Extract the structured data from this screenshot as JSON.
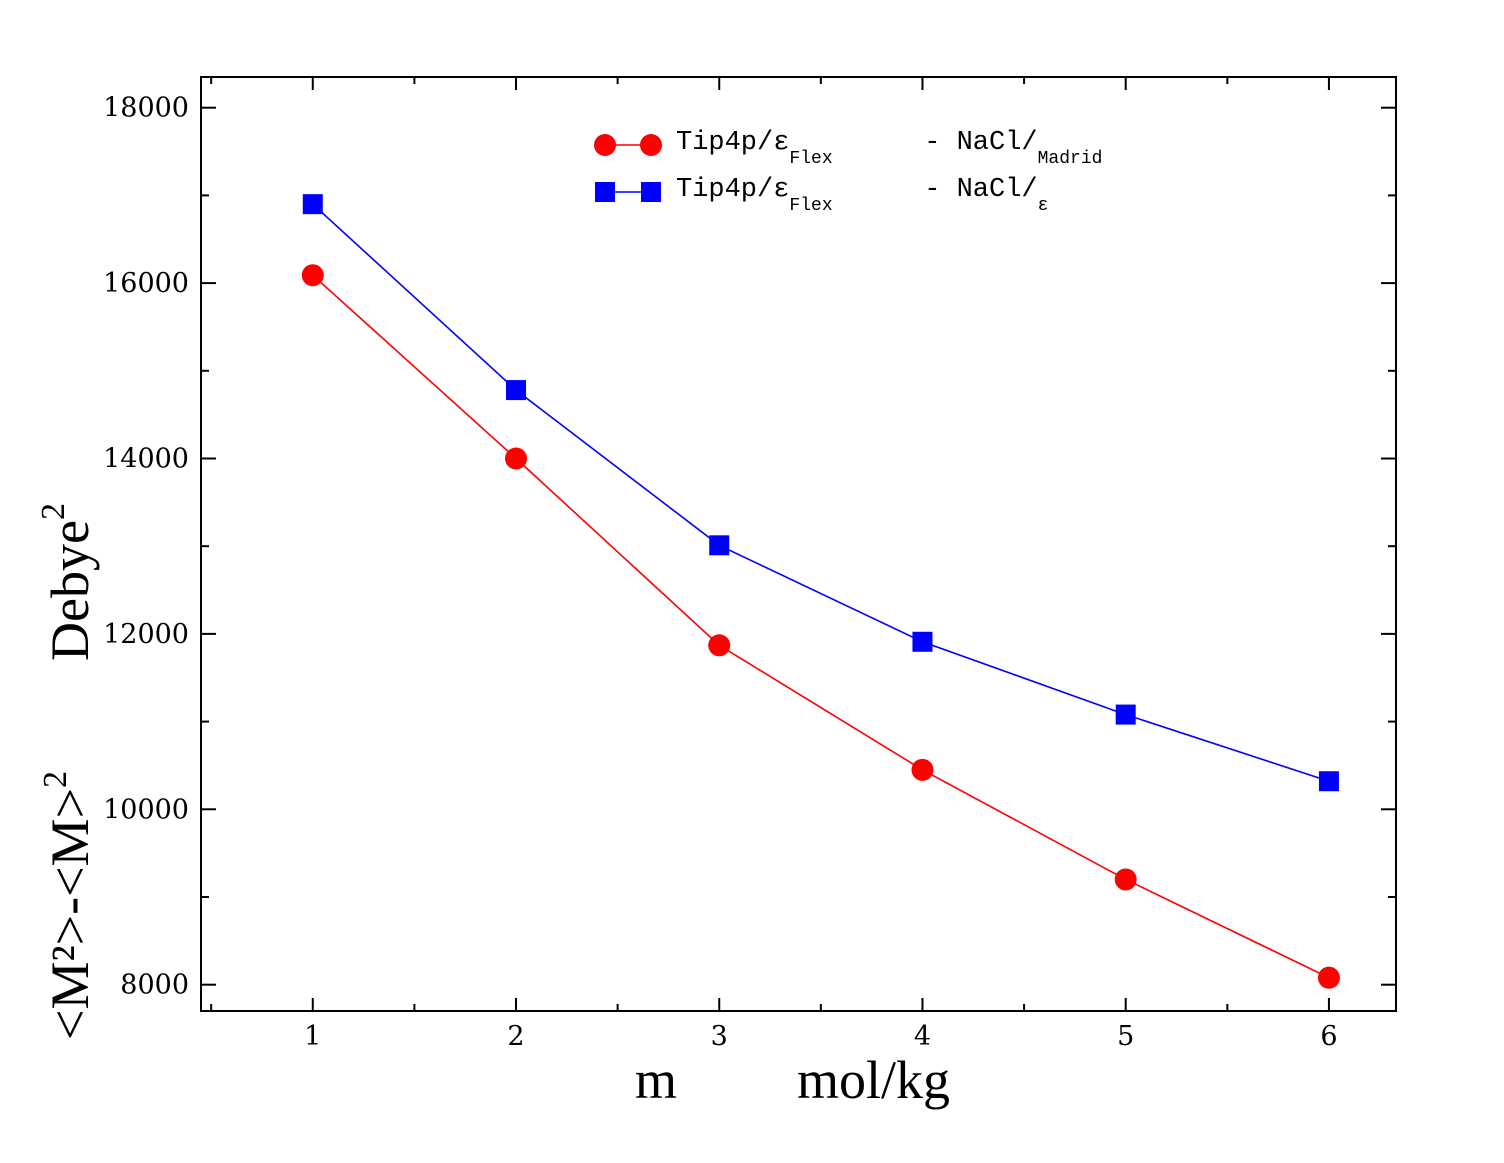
{
  "chart_data": {
    "type": "line",
    "title": "",
    "xlabel": "m",
    "xlabel_units": "mol/kg",
    "ylabel_main": "<M²>-<M>",
    "ylabel_main_sup": "2",
    "ylabel_units": "Debye",
    "ylabel_units_sup": "2",
    "xlim": [
      0.45,
      6.33
    ],
    "ylim": [
      7700,
      18350
    ],
    "x_ticks": [
      1,
      2,
      3,
      4,
      5,
      6
    ],
    "x_tick_labels": [
      "1",
      "2",
      "3",
      "4",
      "5",
      "6"
    ],
    "y_ticks": [
      8000,
      10000,
      12000,
      14000,
      16000,
      18000
    ],
    "y_tick_labels": [
      "8000",
      "10000",
      "12000",
      "14000",
      "16000",
      "18000"
    ],
    "legend_position": "top-center",
    "x": [
      1,
      2,
      3,
      4,
      5,
      6
    ],
    "series": [
      {
        "name": "Tip4p/ε",
        "name_sub": "Flex",
        "name_tail": " - NaCl/",
        "name_tail_sub": "Madrid",
        "marker": "circle",
        "color": "#ff0000",
        "values": [
          16090,
          14000,
          11870,
          10450,
          9200,
          8080
        ]
      },
      {
        "name": "Tip4p/ε",
        "name_sub": "Flex",
        "name_tail": " - NaCl/",
        "name_tail_sub": "ε",
        "marker": "square",
        "color": "#0000ff",
        "values": [
          16900,
          14780,
          13010,
          11910,
          11080,
          10320
        ]
      }
    ]
  }
}
